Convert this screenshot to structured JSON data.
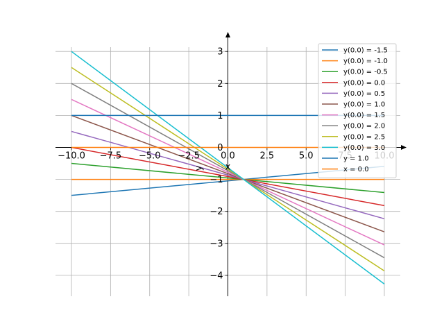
{
  "chart_data": {
    "type": "line",
    "xlabel": "x",
    "ylabel": "y",
    "xlim": [
      -10.0,
      10.0
    ],
    "ylim": [
      -4.3,
      3.3
    ],
    "x_ticks": [
      "−10.0",
      "−7.5",
      "−5.0",
      "−2.5",
      "0.0",
      "2.5",
      "5.0",
      "7.5",
      "10.0"
    ],
    "x_tick_values": [
      -10,
      -7.5,
      -5,
      -2.5,
      0,
      2.5,
      5,
      7.5,
      10
    ],
    "y_ticks": [
      "−4",
      "−3",
      "−2",
      "−1",
      "0",
      "1",
      "2",
      "3"
    ],
    "y_tick_values": [
      -4,
      -3,
      -2,
      -1,
      0,
      1,
      2,
      3
    ],
    "grid": true,
    "legend_position": "top-right",
    "series": [
      {
        "name": "y(0.0) = -1.5",
        "color": "#1f77b4",
        "x": [
          -10,
          10
        ],
        "y": [
          -1.5,
          -0.59
        ]
      },
      {
        "name": "y(0.0) = -1.0",
        "color": "#ff7f0e",
        "x": [
          -10,
          10
        ],
        "y": [
          -1.0,
          -1.0
        ]
      },
      {
        "name": "y(0.0) = -0.5",
        "color": "#2ca02c",
        "x": [
          -10,
          10
        ],
        "y": [
          -0.5,
          -1.41
        ]
      },
      {
        "name": "y(0.0) = 0.0",
        "color": "#d62728",
        "x": [
          -10,
          10
        ],
        "y": [
          0.0,
          -1.82
        ]
      },
      {
        "name": "y(0.0) = 0.5",
        "color": "#9467bd",
        "x": [
          -10,
          10
        ],
        "y": [
          0.5,
          -2.23
        ]
      },
      {
        "name": "y(0.0) = 1.0",
        "color": "#8c564b",
        "x": [
          -10,
          10
        ],
        "y": [
          1.0,
          -2.64
        ]
      },
      {
        "name": "y(0.0) = 1.5",
        "color": "#e377c2",
        "x": [
          -10,
          10
        ],
        "y": [
          1.5,
          -3.05
        ]
      },
      {
        "name": "y(0.0) = 2.0",
        "color": "#7f7f7f",
        "x": [
          -10,
          10
        ],
        "y": [
          2.0,
          -3.45
        ]
      },
      {
        "name": "y(0.0) = 2.5",
        "color": "#bcbd22",
        "x": [
          -10,
          10
        ],
        "y": [
          2.5,
          -3.86
        ]
      },
      {
        "name": "y(0.0) = 3.0",
        "color": "#17becf",
        "x": [
          -10,
          10
        ],
        "y": [
          3.0,
          -4.27
        ]
      },
      {
        "name": "y = 1.0",
        "color": "#1f77b4",
        "x": [
          -10,
          10
        ],
        "y": [
          1.0,
          1.0
        ]
      },
      {
        "name": "x = 0.0",
        "color": "#ff7f0e",
        "x": [
          -10,
          10
        ],
        "y": [
          0.0,
          0.0
        ]
      }
    ]
  }
}
